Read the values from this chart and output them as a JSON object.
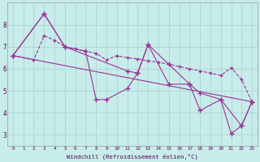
{
  "xlabel": "Windchill (Refroidissement éolien,°C)",
  "bg_color": "#c8ecea",
  "line_color": "#993399",
  "grid_color": "#b0d8d8",
  "xlim": [
    -0.5,
    23.5
  ],
  "ylim": [
    2.5,
    9.0
  ],
  "xticks": [
    0,
    1,
    2,
    3,
    4,
    5,
    6,
    7,
    8,
    9,
    10,
    11,
    12,
    13,
    14,
    15,
    16,
    17,
    18,
    19,
    20,
    21,
    22,
    23
  ],
  "yticks": [
    3,
    4,
    5,
    6,
    7,
    8
  ],
  "line1_x": [
    0,
    3,
    5,
    7,
    8,
    9,
    11,
    12,
    13,
    15,
    17,
    18,
    20,
    21,
    22,
    23
  ],
  "line1_y": [
    6.6,
    8.5,
    7.0,
    6.8,
    4.6,
    4.6,
    5.1,
    5.8,
    7.1,
    5.3,
    5.3,
    4.1,
    4.6,
    3.05,
    3.4,
    4.5
  ],
  "line2_x": [
    0,
    2,
    3,
    4,
    5,
    6,
    7,
    8,
    9,
    10,
    11,
    12,
    13,
    14,
    15,
    16,
    17,
    18,
    19,
    20,
    21,
    22,
    23
  ],
  "line2_y": [
    6.6,
    6.4,
    7.5,
    7.3,
    7.0,
    6.9,
    6.8,
    6.7,
    6.4,
    6.6,
    6.5,
    6.45,
    6.35,
    6.3,
    6.2,
    6.1,
    6.0,
    5.9,
    5.8,
    5.7,
    6.05,
    5.5,
    4.5
  ],
  "line3_x": [
    0,
    3,
    5,
    11,
    12,
    13,
    15,
    17,
    18,
    20,
    22,
    23
  ],
  "line3_y": [
    6.6,
    8.5,
    7.0,
    5.9,
    5.8,
    7.1,
    6.2,
    5.3,
    4.9,
    4.6,
    3.4,
    4.5
  ],
  "line4_x": [
    0,
    23
  ],
  "line4_y": [
    6.6,
    4.5
  ]
}
